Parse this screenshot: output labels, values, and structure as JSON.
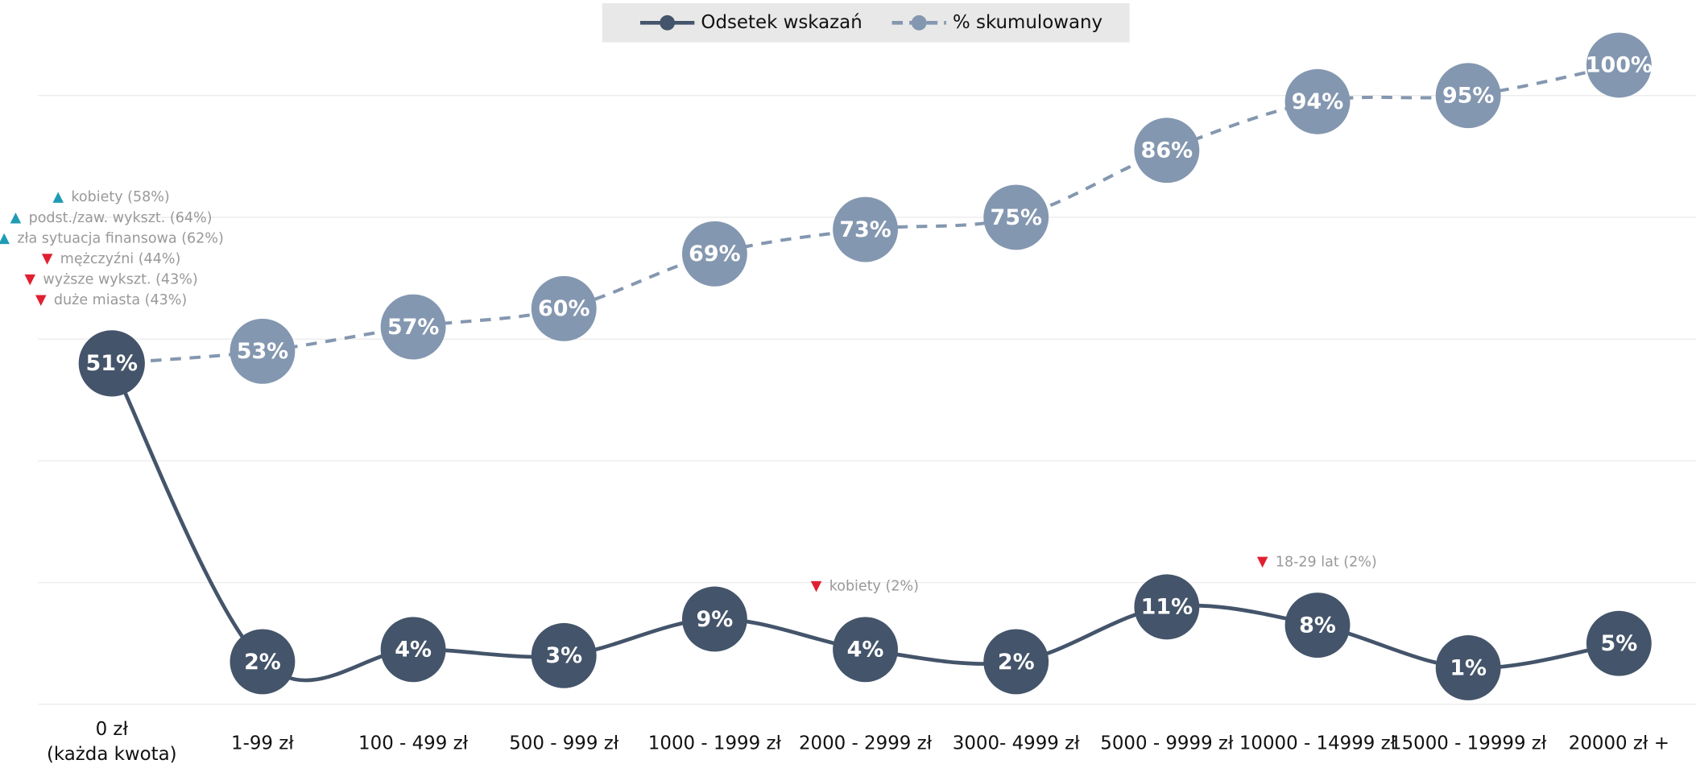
{
  "chart_data": {
    "type": "line",
    "categories": [
      "0 zł\n(każda kwota)",
      "1-99 zł",
      "100 - 499 zł",
      "500 - 999 zł",
      "1000 - 1999 zł",
      "2000 - 2999 zł",
      "3000- 4999 zł",
      "5000 - 9999 zł",
      "10000 - 14999 zł",
      "15000 - 19999 zł",
      "20000 zł +"
    ],
    "series": [
      {
        "name": "Odsetek wskazań",
        "color": "#44546a",
        "dash": false,
        "values": [
          51,
          2,
          4,
          3,
          9,
          4,
          2,
          11,
          8,
          1,
          5
        ],
        "value_labels": [
          "51%",
          "2%",
          "4%",
          "3%",
          "9%",
          "4%",
          "2%",
          "11%",
          "8%",
          "1%",
          "5%"
        ]
      },
      {
        "name": "% skumulowany",
        "color": "#8497b0",
        "dash": true,
        "values": [
          51,
          53,
          57,
          60,
          69,
          73,
          75,
          86,
          94,
          95,
          100
        ],
        "value_labels": [
          "51%",
          "53%",
          "57%",
          "60%",
          "69%",
          "73%",
          "75%",
          "86%",
          "94%",
          "95%",
          "100%"
        ]
      }
    ],
    "ylim": [
      -5,
      100
    ],
    "yticks": [
      -5,
      15,
      35,
      55,
      75,
      95
    ],
    "grid": true,
    "legend": "top",
    "annotations": [
      {
        "category": "0 zł\n(każda kwota)",
        "series": "% skumulowany",
        "items": [
          {
            "text": "kobiety (58%)",
            "direction": "up"
          },
          {
            "text": "podst./zaw. wykszt. (64%)",
            "direction": "up"
          },
          {
            "text": "zła sytuacja finansowa (62%)",
            "direction": "up"
          },
          {
            "text": "mężczyźni (44%)",
            "direction": "down"
          },
          {
            "text": "wyższe wykszt. (43%)",
            "direction": "down"
          },
          {
            "text": "duże miasta (43%)",
            "direction": "down"
          }
        ]
      },
      {
        "category": "2000 - 2999 zł",
        "series": "Odsetek wskazań",
        "items": [
          {
            "text": "kobiety (2%)",
            "direction": "down"
          }
        ]
      },
      {
        "category": "10000 - 14999 zł",
        "series": "Odsetek wskazań",
        "items": [
          {
            "text": "18-29 lat (2%)",
            "direction": "down"
          }
        ]
      }
    ]
  }
}
